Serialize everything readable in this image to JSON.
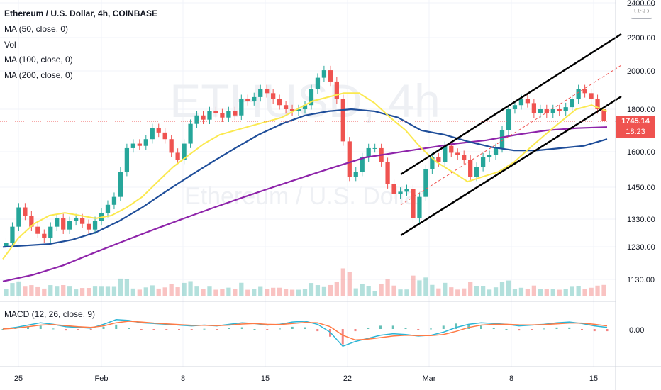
{
  "legend": {
    "title": "Ethereum / U.S. Dollar, 4h, COINBASE",
    "ma50": "MA (50, close, 0)",
    "vol": "Vol",
    "ma100": "MA (100, close, 0)",
    "ma200": "MA (200, close, 0)",
    "macd": "MACD (12, 26, close, 9)"
  },
  "watermark": {
    "ticker": "ETHUSD, 4h",
    "name": "Ethereum / U.S. Dollar"
  },
  "currency_button": "USD",
  "last_price": {
    "value": "1745.14",
    "countdown": "18:23"
  },
  "colors": {
    "up": "#26a69a",
    "down": "#ef5350",
    "ma50": "#fbe94f",
    "ma100": "#1f4e9a",
    "ma200": "#8e24aa",
    "macd": "#2bb5d6",
    "signal": "#ff7a45",
    "channel": "#000000",
    "midline": "#ef5350"
  },
  "chart_data": {
    "type": "candlestick",
    "title": "Ethereum / U.S. Dollar, 4h, COINBASE",
    "x_ticks": [
      "25",
      "Feb",
      "8",
      "15",
      "22",
      "Mar",
      "8",
      "15"
    ],
    "y_ticks": [
      "2400.00",
      "2200.00",
      "2000.00",
      "1800.00",
      "1600.00",
      "1450.00",
      "1330.00",
      "1230.00",
      "1130.00"
    ],
    "y_scale": "log",
    "macd_ticks": [
      "0.00"
    ],
    "last_close": 1745.14,
    "grid": true,
    "closes": [
      1255,
      1310,
      1380,
      1350,
      1310,
      1285,
      1270,
      1310,
      1340,
      1300,
      1330,
      1340,
      1320,
      1300,
      1330,
      1360,
      1390,
      1420,
      1520,
      1620,
      1640,
      1630,
      1660,
      1710,
      1690,
      1660,
      1600,
      1570,
      1640,
      1730,
      1770,
      1750,
      1790,
      1780,
      1760,
      1790,
      1770,
      1850,
      1840,
      1860,
      1900,
      1880,
      1850,
      1820,
      1800,
      1790,
      1800,
      1820,
      1900,
      1960,
      2000,
      1940,
      1850,
      1650,
      1500,
      1520,
      1580,
      1620,
      1620,
      1560,
      1470,
      1430,
      1440,
      1450,
      1340,
      1420,
      1530,
      1580,
      1560,
      1630,
      1600,
      1590,
      1570,
      1500,
      1540,
      1580,
      1590,
      1620,
      1700,
      1800,
      1820,
      1850,
      1830,
      1780,
      1800,
      1780,
      1800,
      1790,
      1810,
      1850,
      1900,
      1880,
      1850,
      1800,
      1745
    ],
    "ma50": [
      1200,
      1270,
      1320,
      1350,
      1360,
      1350,
      1340,
      1350,
      1380,
      1420,
      1480,
      1540,
      1590,
      1640,
      1680,
      1700,
      1720,
      1740,
      1760,
      1800,
      1840,
      1860,
      1880,
      1880,
      1830,
      1760,
      1700,
      1620,
      1560,
      1520,
      1480,
      1500,
      1520,
      1560,
      1620,
      1680,
      1740,
      1800,
      1820,
      1790
    ],
    "ma100": [
      1240,
      1245,
      1250,
      1265,
      1290,
      1330,
      1380,
      1440,
      1500,
      1560,
      1620,
      1680,
      1730,
      1770,
      1790,
      1800,
      1790,
      1760,
      1700,
      1680,
      1650,
      1625,
      1610,
      1610,
      1620,
      1630,
      1660
    ],
    "ma200": [
      1130,
      1150,
      1180,
      1220,
      1260,
      1300,
      1340,
      1380,
      1420,
      1460,
      1500,
      1540,
      1580,
      1600,
      1620,
      1640,
      1655,
      1680,
      1700,
      1710,
      1715
    ],
    "macd_values": [
      0,
      10,
      25,
      40,
      30,
      15,
      10,
      5,
      30,
      60,
      55,
      40,
      35,
      30,
      25,
      20,
      25,
      20,
      30,
      40,
      35,
      25,
      30,
      45,
      50,
      30,
      -20,
      -110,
      -80,
      -60,
      -40,
      -30,
      -35,
      -45,
      -40,
      -20,
      10,
      30,
      40,
      35,
      30,
      20,
      25,
      30,
      40,
      45,
      35,
      20,
      10
    ],
    "signal_values": [
      0,
      5,
      15,
      25,
      28,
      22,
      15,
      10,
      20,
      40,
      50,
      45,
      38,
      33,
      28,
      24,
      24,
      22,
      25,
      32,
      35,
      30,
      28,
      35,
      42,
      40,
      15,
      -40,
      -70,
      -65,
      -55,
      -45,
      -40,
      -42,
      -42,
      -35,
      -15,
      10,
      25,
      30,
      30,
      27,
      26,
      28,
      33,
      38,
      38,
      30,
      20
    ]
  }
}
